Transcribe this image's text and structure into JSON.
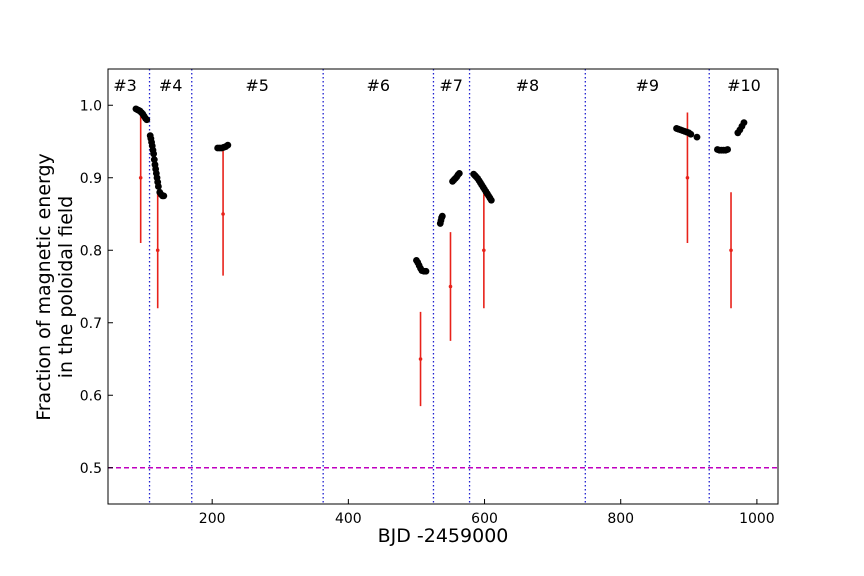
{
  "chart_data": {
    "type": "scatter",
    "xlabel": "BJD -2459000",
    "ylabel": [
      "Fraction of magnetic energy",
      "in the poloidal field"
    ],
    "xlim": [
      47,
      1031
    ],
    "ylim": [
      0.45,
      1.05
    ],
    "xticks": [
      200,
      400,
      600,
      800,
      1000
    ],
    "yticks": [
      0.5,
      0.6,
      0.7,
      0.8,
      0.9,
      1.0
    ],
    "xtick_labels": [
      "200",
      "400",
      "600",
      "800",
      "1000"
    ],
    "ytick_labels": [
      "0.5",
      "0.6",
      "0.7",
      "0.8",
      "0.9",
      "1.0"
    ],
    "grid": false,
    "reference_line": {
      "y": 0.5,
      "style": "dashed",
      "color": "#c000c0"
    },
    "season_boundaries": [
      108,
      170,
      363,
      525,
      578,
      748,
      930
    ],
    "season_line_color": "#1f1fd0",
    "seasons": [
      {
        "label": "#3",
        "x": 72
      },
      {
        "label": "#4",
        "x": 139
      },
      {
        "label": "#5",
        "x": 266
      },
      {
        "label": "#6",
        "x": 444
      },
      {
        "label": "#7",
        "x": 551
      },
      {
        "label": "#8",
        "x": 663
      },
      {
        "label": "#9",
        "x": 839
      },
      {
        "label": "#10",
        "x": 981
      }
    ],
    "series": [
      {
        "color": "#000000",
        "marker": "circle",
        "points": [
          [
            88,
            0.995
          ],
          [
            90,
            0.994
          ],
          [
            92,
            0.993
          ],
          [
            94,
            0.992
          ],
          [
            96,
            0.99
          ],
          [
            98,
            0.988
          ],
          [
            100,
            0.985
          ],
          [
            102,
            0.982
          ],
          [
            104,
            0.98
          ],
          [
            109,
            0.958
          ],
          [
            110,
            0.954
          ],
          [
            111,
            0.949
          ],
          [
            112,
            0.944
          ],
          [
            113,
            0.938
          ],
          [
            114,
            0.933
          ],
          [
            115,
            0.925
          ],
          [
            116,
            0.918
          ],
          [
            117,
            0.912
          ],
          [
            118,
            0.906
          ],
          [
            119,
            0.9
          ],
          [
            120,
            0.894
          ],
          [
            121,
            0.888
          ],
          [
            123,
            0.88
          ],
          [
            125,
            0.877
          ],
          [
            127,
            0.875
          ],
          [
            129,
            0.875
          ],
          [
            208,
            0.941
          ],
          [
            211,
            0.941
          ],
          [
            214,
            0.941
          ],
          [
            217,
            0.942
          ],
          [
            220,
            0.943
          ],
          [
            223,
            0.945
          ],
          [
            500,
            0.786
          ],
          [
            502,
            0.783
          ],
          [
            504,
            0.779
          ],
          [
            506,
            0.775
          ],
          [
            508,
            0.772
          ],
          [
            511,
            0.771
          ],
          [
            514,
            0.771
          ],
          [
            535,
            0.837
          ],
          [
            536,
            0.841
          ],
          [
            537,
            0.845
          ],
          [
            538,
            0.847
          ],
          [
            553,
            0.895
          ],
          [
            555,
            0.897
          ],
          [
            557,
            0.899
          ],
          [
            559,
            0.901
          ],
          [
            561,
            0.904
          ],
          [
            563,
            0.906
          ],
          [
            584,
            0.905
          ],
          [
            586,
            0.903
          ],
          [
            588,
            0.901
          ],
          [
            590,
            0.899
          ],
          [
            592,
            0.896
          ],
          [
            594,
            0.893
          ],
          [
            596,
            0.89
          ],
          [
            598,
            0.887
          ],
          [
            600,
            0.884
          ],
          [
            602,
            0.881
          ],
          [
            604,
            0.878
          ],
          [
            606,
            0.875
          ],
          [
            608,
            0.872
          ],
          [
            610,
            0.869
          ],
          [
            882,
            0.968
          ],
          [
            885,
            0.967
          ],
          [
            888,
            0.966
          ],
          [
            891,
            0.965
          ],
          [
            894,
            0.964
          ],
          [
            897,
            0.963
          ],
          [
            900,
            0.962
          ],
          [
            903,
            0.96
          ],
          [
            912,
            0.956
          ],
          [
            942,
            0.939
          ],
          [
            945,
            0.938
          ],
          [
            948,
            0.938
          ],
          [
            951,
            0.938
          ],
          [
            954,
            0.938
          ],
          [
            957,
            0.939
          ],
          [
            972,
            0.962
          ],
          [
            975,
            0.966
          ],
          [
            978,
            0.971
          ],
          [
            981,
            0.976
          ]
        ]
      },
      {
        "color": "#e8221a",
        "marker": "errorbar",
        "points": [
          {
            "x": 95,
            "y": 0.9,
            "ylow": 0.81,
            "yhigh": 0.99
          },
          {
            "x": 120,
            "y": 0.8,
            "ylow": 0.72,
            "yhigh": 0.88
          },
          {
            "x": 216,
            "y": 0.85,
            "ylow": 0.765,
            "yhigh": 0.94
          },
          {
            "x": 506,
            "y": 0.65,
            "ylow": 0.585,
            "yhigh": 0.715
          },
          {
            "x": 550,
            "y": 0.75,
            "ylow": 0.675,
            "yhigh": 0.825
          },
          {
            "x": 599,
            "y": 0.8,
            "ylow": 0.72,
            "yhigh": 0.88
          },
          {
            "x": 898,
            "y": 0.9,
            "ylow": 0.81,
            "yhigh": 0.99
          },
          {
            "x": 962,
            "y": 0.8,
            "ylow": 0.72,
            "yhigh": 0.88
          }
        ]
      }
    ]
  }
}
